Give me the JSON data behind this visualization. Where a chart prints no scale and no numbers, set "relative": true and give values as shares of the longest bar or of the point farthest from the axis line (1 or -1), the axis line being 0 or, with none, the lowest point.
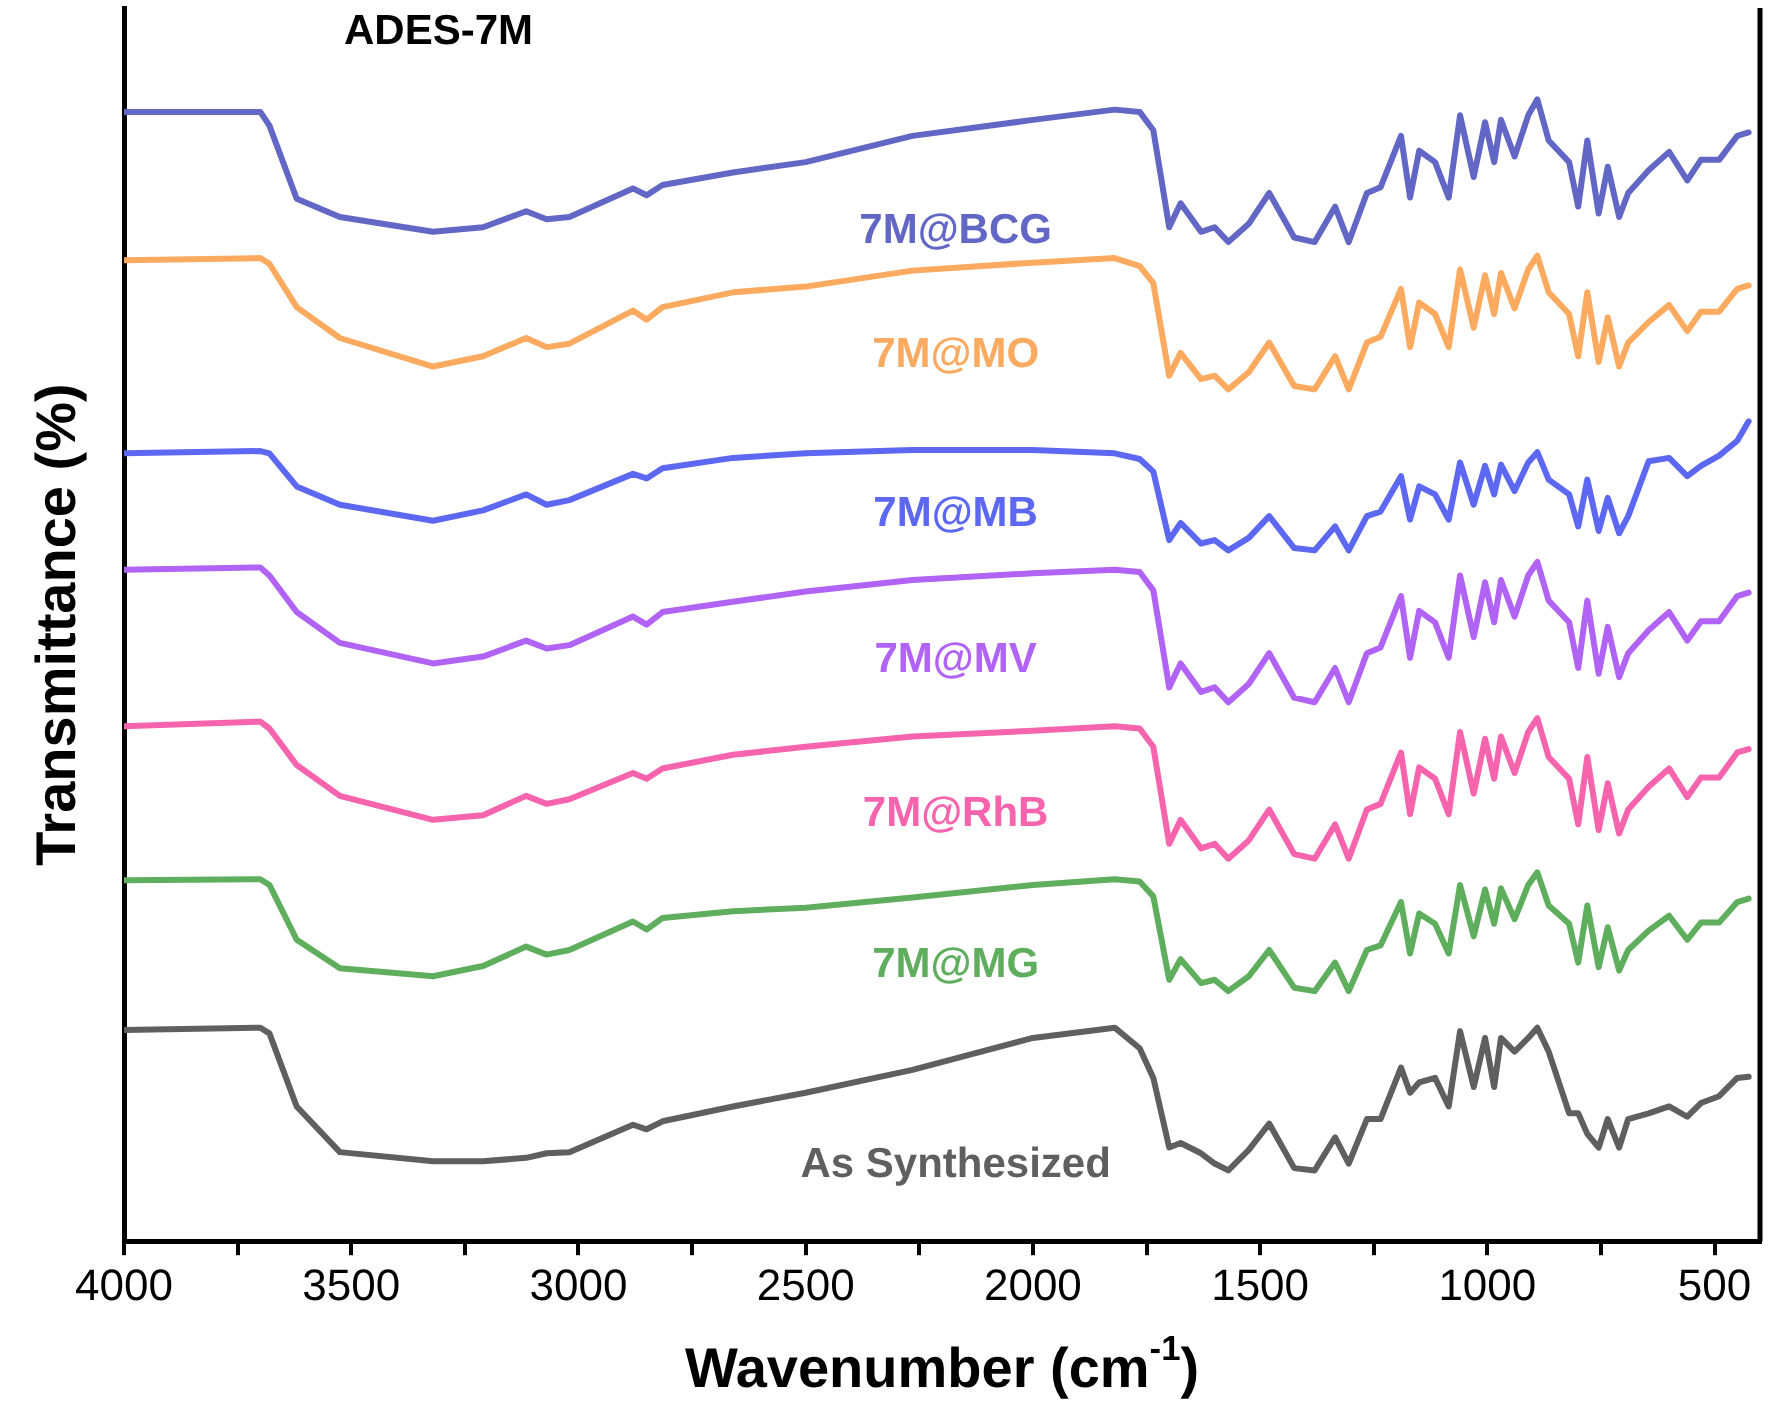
{
  "chart_data": {
    "type": "line",
    "relative": true,
    "xlabel": "Wavenumber (cm$^{-1}$)",
    "ylabel": "Transmittance (%)",
    "annotations": [
      "ADES-7M"
    ],
    "xlim": [
      4000,
      400
    ],
    "xticks": [
      4000,
      {
        "value": 3750,
        "label": null
      },
      3500,
      {
        "value": 3250,
        "label": null
      },
      3000,
      {
        "value": 2750,
        "label": null
      },
      2500,
      {
        "value": 2250,
        "label": null
      },
      2000,
      {
        "value": 1750,
        "label": null
      },
      1500,
      {
        "value": 1250,
        "label": null
      },
      1000,
      {
        "value": 750,
        "label": null
      },
      500
    ],
    "grid": false,
    "legend": false,
    "marker": "none",
    "line_style": "solid",
    "x": [
      4000,
      3700,
      3680,
      3620,
      3525,
      3320,
      3210,
      3115,
      3070,
      3020,
      2880,
      2850,
      2815,
      2660,
      2500,
      2265,
      2000,
      1820,
      1765,
      1735,
      1700,
      1675,
      1630,
      1600,
      1570,
      1525,
      1480,
      1425,
      1380,
      1335,
      1305,
      1265,
      1235,
      1190,
      1170,
      1150,
      1115,
      1085,
      1060,
      1030,
      1005,
      985,
      970,
      940,
      910,
      890,
      865,
      820,
      800,
      780,
      755,
      735,
      710,
      690,
      645,
      600,
      560,
      530,
      490,
      450,
      425
    ],
    "series": [
      {
        "name": "7M@BCG",
        "color": "#6266c5",
        "values": [
          0.989,
          0.989,
          0.977,
          0.913,
          0.897,
          0.884,
          0.888,
          0.902,
          0.895,
          0.897,
          0.922,
          0.916,
          0.925,
          0.936,
          0.945,
          0.968,
          0.982,
          0.991,
          0.989,
          0.973,
          0.888,
          0.909,
          0.884,
          0.888,
          0.875,
          0.891,
          0.918,
          0.879,
          0.875,
          0.906,
          0.875,
          0.918,
          0.923,
          0.968,
          0.914,
          0.955,
          0.945,
          0.914,
          0.986,
          0.932,
          0.98,
          0.945,
          0.982,
          0.95,
          0.986,
          1,
          0.964,
          0.945,
          0.906,
          0.964,
          0.9,
          0.941,
          0.897,
          0.918,
          0.938,
          0.954,
          0.929,
          0.947,
          0.947,
          0.968,
          0.971
        ]
      },
      {
        "name": "7M@MO",
        "color": "#fcaa5f",
        "values": [
          0.859,
          0.861,
          0.856,
          0.818,
          0.791,
          0.766,
          0.775,
          0.791,
          0.783,
          0.786,
          0.815,
          0.807,
          0.818,
          0.831,
          0.836,
          0.85,
          0.857,
          0.861,
          0.854,
          0.839,
          0.758,
          0.778,
          0.755,
          0.758,
          0.746,
          0.761,
          0.787,
          0.749,
          0.746,
          0.775,
          0.746,
          0.787,
          0.792,
          0.834,
          0.783,
          0.822,
          0.812,
          0.783,
          0.851,
          0.8,
          0.846,
          0.812,
          0.848,
          0.817,
          0.851,
          0.863,
          0.831,
          0.812,
          0.775,
          0.831,
          0.77,
          0.809,
          0.766,
          0.787,
          0.805,
          0.82,
          0.797,
          0.814,
          0.814,
          0.834,
          0.837
        ]
      },
      {
        "name": "7M@MB",
        "color": "#5c67f2",
        "values": [
          0.69,
          0.692,
          0.69,
          0.661,
          0.645,
          0.631,
          0.64,
          0.654,
          0.645,
          0.649,
          0.672,
          0.668,
          0.677,
          0.686,
          0.69,
          0.693,
          0.693,
          0.69,
          0.685,
          0.674,
          0.614,
          0.629,
          0.611,
          0.614,
          0.605,
          0.616,
          0.635,
          0.607,
          0.605,
          0.626,
          0.605,
          0.635,
          0.639,
          0.67,
          0.632,
          0.661,
          0.654,
          0.632,
          0.682,
          0.645,
          0.679,
          0.654,
          0.68,
          0.657,
          0.682,
          0.691,
          0.667,
          0.654,
          0.626,
          0.667,
          0.622,
          0.651,
          0.62,
          0.635,
          0.683,
          0.686,
          0.67,
          0.679,
          0.688,
          0.701,
          0.718
        ]
      },
      {
        "name": "7M@MV",
        "color": "#b163f5",
        "values": [
          0.588,
          0.59,
          0.583,
          0.551,
          0.524,
          0.506,
          0.512,
          0.526,
          0.519,
          0.522,
          0.547,
          0.54,
          0.551,
          0.56,
          0.569,
          0.579,
          0.585,
          0.588,
          0.586,
          0.57,
          0.485,
          0.506,
          0.481,
          0.485,
          0.472,
          0.488,
          0.515,
          0.476,
          0.472,
          0.502,
          0.472,
          0.515,
          0.52,
          0.565,
          0.511,
          0.552,
          0.542,
          0.511,
          0.583,
          0.529,
          0.577,
          0.542,
          0.579,
          0.547,
          0.583,
          0.595,
          0.561,
          0.542,
          0.502,
          0.561,
          0.497,
          0.538,
          0.494,
          0.515,
          0.535,
          0.551,
          0.526,
          0.543,
          0.543,
          0.565,
          0.568
        ]
      },
      {
        "name": "7M@RhB",
        "color": "#f564ad",
        "values": [
          0.451,
          0.455,
          0.449,
          0.417,
          0.39,
          0.369,
          0.373,
          0.39,
          0.383,
          0.387,
          0.41,
          0.405,
          0.414,
          0.426,
          0.433,
          0.442,
          0.447,
          0.451,
          0.449,
          0.433,
          0.348,
          0.369,
          0.344,
          0.348,
          0.335,
          0.351,
          0.378,
          0.339,
          0.335,
          0.365,
          0.335,
          0.378,
          0.383,
          0.428,
          0.374,
          0.415,
          0.405,
          0.374,
          0.446,
          0.392,
          0.44,
          0.405,
          0.442,
          0.41,
          0.446,
          0.458,
          0.424,
          0.405,
          0.365,
          0.424,
          0.36,
          0.401,
          0.357,
          0.378,
          0.398,
          0.414,
          0.389,
          0.406,
          0.406,
          0.428,
          0.431
        ]
      },
      {
        "name": "7M@MG",
        "color": "#5fae5d",
        "values": [
          0.316,
          0.317,
          0.312,
          0.264,
          0.239,
          0.232,
          0.241,
          0.258,
          0.251,
          0.255,
          0.28,
          0.273,
          0.283,
          0.289,
          0.292,
          0.301,
          0.312,
          0.317,
          0.315,
          0.302,
          0.229,
          0.247,
          0.226,
          0.229,
          0.219,
          0.232,
          0.255,
          0.222,
          0.219,
          0.244,
          0.219,
          0.255,
          0.259,
          0.297,
          0.252,
          0.287,
          0.278,
          0.252,
          0.312,
          0.267,
          0.308,
          0.278,
          0.309,
          0.282,
          0.312,
          0.323,
          0.294,
          0.278,
          0.244,
          0.294,
          0.24,
          0.275,
          0.237,
          0.255,
          0.272,
          0.285,
          0.264,
          0.279,
          0.279,
          0.297,
          0.3
        ]
      },
      {
        "name": "As Synthesized",
        "color": "#5f5f5f",
        "values": [
          0.185,
          0.187,
          0.182,
          0.118,
          0.078,
          0.07,
          0.07,
          0.073,
          0.077,
          0.078,
          0.102,
          0.098,
          0.105,
          0.118,
          0.13,
          0.15,
          0.178,
          0.187,
          0.169,
          0.143,
          0.082,
          0.086,
          0.077,
          0.068,
          0.062,
          0.08,
          0.103,
          0.064,
          0.062,
          0.091,
          0.068,
          0.107,
          0.107,
          0.152,
          0.13,
          0.139,
          0.143,
          0.118,
          0.184,
          0.135,
          0.178,
          0.135,
          0.178,
          0.166,
          0.178,
          0.187,
          0.166,
          0.112,
          0.112,
          0.094,
          0.082,
          0.107,
          0.082,
          0.107,
          0.112,
          0.118,
          0.109,
          0.121,
          0.127,
          0.143,
          0.144
        ]
      }
    ]
  }
}
